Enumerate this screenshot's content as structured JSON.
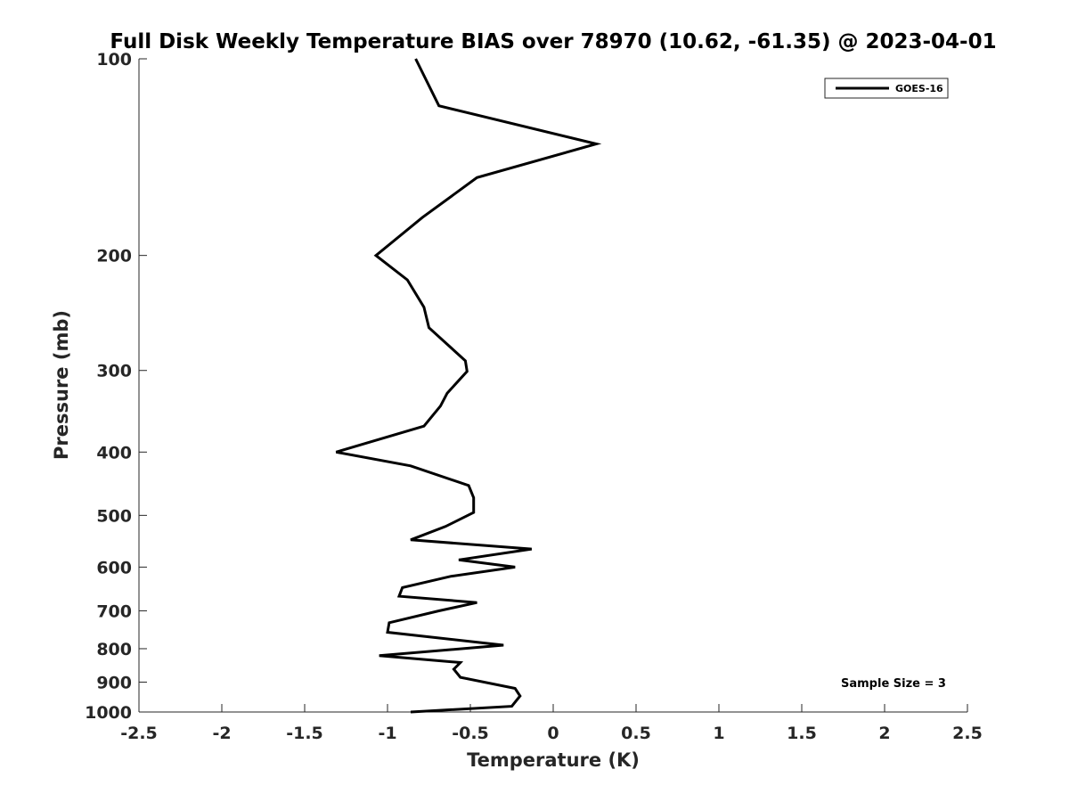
{
  "chart_data": {
    "type": "line",
    "title": "Full Disk Weekly Temperature BIAS over 78970 (10.62, -61.35) @ 2023-04-01",
    "xlabel": "Temperature (K)",
    "ylabel": "Pressure (mb)",
    "xlim": [
      -2.5,
      2.5
    ],
    "ylim": [
      100,
      1000
    ],
    "y_scale": "log",
    "y_reversed": true,
    "grid": false,
    "legend_placement": "top-right",
    "x_ticks": [
      "-2.5",
      "-2",
      "-1.5",
      "-1",
      "-0.5",
      "0",
      "0.5",
      "1",
      "1.5",
      "2",
      "2.5"
    ],
    "y_ticks": [
      "100",
      "200",
      "300",
      "400",
      "500",
      "600",
      "700",
      "800",
      "900",
      "1000"
    ],
    "series": [
      {
        "name": "GOES-16",
        "color": "#000000",
        "x": [
          -0.83,
          -0.69,
          0.26,
          -0.46,
          -0.79,
          -1.07,
          -0.88,
          -0.78,
          -0.75,
          -0.53,
          -0.52,
          -0.64,
          -0.68,
          -0.78,
          -1.31,
          -0.86,
          -0.51,
          -0.48,
          -0.48,
          -0.65,
          -0.86,
          -0.13,
          -0.57,
          -0.23,
          -0.62,
          -0.91,
          -0.93,
          -0.46,
          -0.69,
          -0.99,
          -1.0,
          -0.3,
          -1.05,
          -0.56,
          -0.6,
          -0.56,
          -0.23,
          -0.2,
          -0.25,
          -0.86
        ],
        "y": [
          100,
          118,
          135,
          152,
          175,
          200,
          218,
          240,
          258,
          290,
          301,
          325,
          340,
          365,
          400,
          420,
          450,
          470,
          495,
          520,
          545,
          563,
          585,
          600,
          620,
          645,
          665,
          680,
          700,
          730,
          755,
          790,
          820,
          840,
          860,
          885,
          920,
          945,
          980,
          1000
        ]
      }
    ],
    "legend": [
      "GOES-16"
    ],
    "annotations": [
      "Sample Size = 3"
    ]
  }
}
